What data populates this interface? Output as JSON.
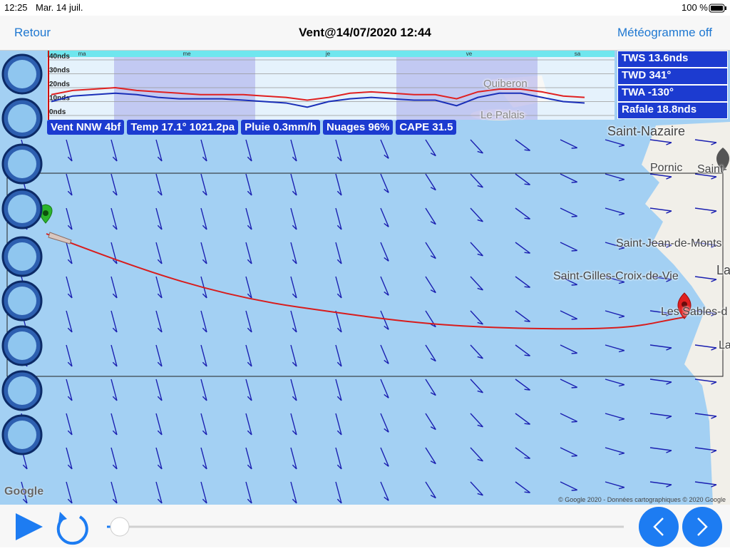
{
  "status_bar": {
    "time": "12:25",
    "date": "Mar. 14 juil.",
    "battery": "100 %"
  },
  "nav": {
    "back": "Retour",
    "title": "Vent@14/07/2020 12:44",
    "meteogram_toggle": "Météogramme off"
  },
  "meteogram": {
    "type": "line",
    "day_labels": [
      "ma",
      "me",
      "je",
      "ve",
      "sa"
    ],
    "ylim": [
      0,
      40
    ],
    "yticks": [
      {
        "value": 0,
        "label": "0nds"
      },
      {
        "value": 10,
        "label": "10nds"
      },
      {
        "value": 20,
        "label": "20nds"
      },
      {
        "value": 30,
        "label": "30nds"
      },
      {
        "value": 40,
        "label": "40nds"
      }
    ],
    "series": [
      {
        "color": "#e02020",
        "values": [
          15,
          18,
          19,
          20,
          18,
          17,
          16,
          15,
          15,
          15,
          14,
          13,
          11,
          13,
          16,
          17,
          16,
          15,
          15,
          12,
          17,
          19,
          19,
          17,
          14,
          13
        ]
      },
      {
        "color": "#1a2fb8",
        "values": [
          10,
          14,
          15,
          16,
          15,
          13,
          12,
          12,
          12,
          11,
          10,
          9,
          6,
          10,
          12,
          13,
          12,
          11,
          11,
          7,
          13,
          16,
          16,
          13,
          10,
          9
        ]
      }
    ]
  },
  "info_chips": [
    "Vent NNW 4bf",
    "Temp 17.1° 1021.2pa",
    "Pluie 0.3mm/h",
    "Nuages 96%",
    "CAPE 31.5"
  ],
  "readout": [
    "TWS 13.6nds",
    "TWD 341°",
    "TWA -130°",
    "Rafale 18.8nds"
  ],
  "map_labels": [
    "Quiberon",
    "Le Palais",
    "Saint-Nazaire",
    "Pornic",
    "Saint-",
    "Saint-Jean-de-Monts",
    "Saint-Gilles-Croix-de-Vie",
    "Les Sables-d",
    "La",
    "La"
  ],
  "attribution": {
    "logo": "Google",
    "copyright": "© Google 2020 - Données cartographiques © 2020 Google"
  }
}
